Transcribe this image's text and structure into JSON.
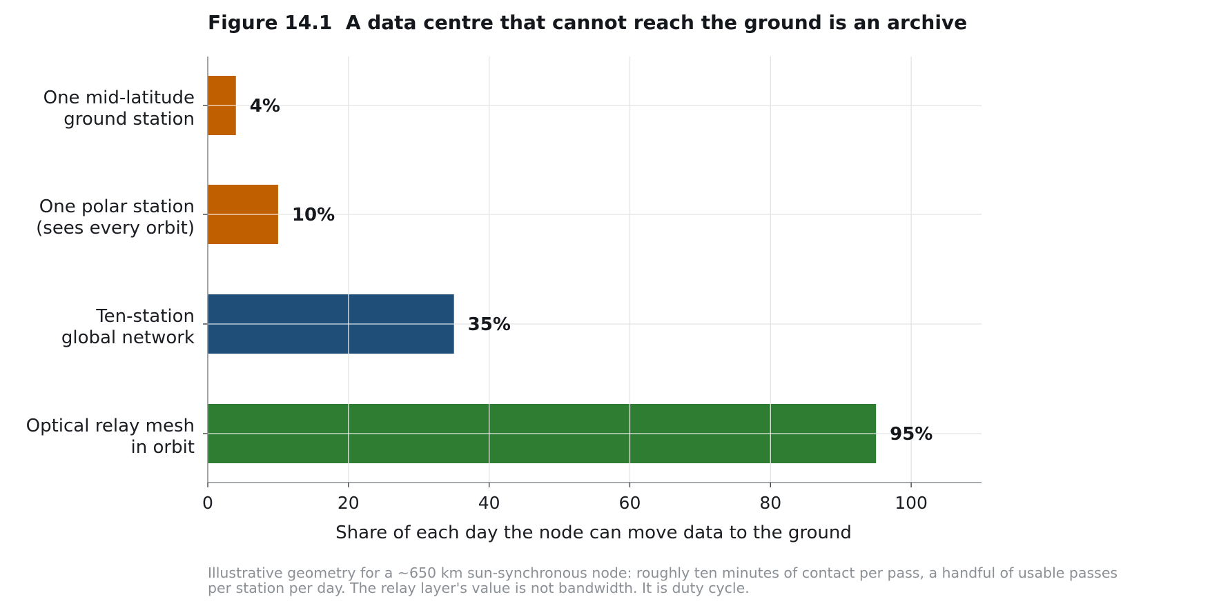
{
  "chart_data": {
    "type": "bar",
    "orientation": "horizontal",
    "title": "Figure 14.1  A data centre that cannot reach the ground is an archive",
    "xlabel": "Share of each day the node can move data to the ground",
    "ylabel": "",
    "xlim": [
      0,
      110
    ],
    "xticks": [
      0,
      20,
      40,
      60,
      80,
      100
    ],
    "grid": true,
    "legend": "none",
    "categories": [
      [
        "One mid-latitude",
        "ground station"
      ],
      [
        "One polar station",
        "(sees every orbit)"
      ],
      [
        "Ten-station",
        "global network"
      ],
      [
        "Optical relay mesh",
        "in orbit"
      ]
    ],
    "values": [
      4,
      10,
      35,
      95
    ],
    "value_labels": [
      "4%",
      "10%",
      "35%",
      "95%"
    ],
    "colors": [
      "#c05f00",
      "#c05f00",
      "#1f4e79",
      "#2e7d32"
    ],
    "caption": [
      "Illustrative geometry for a ~650 km sun-synchronous node: roughly ten minutes of contact per pass, a handful of usable passes",
      "per station per day. The relay layer's value is not bandwidth. It is duty cycle."
    ]
  }
}
